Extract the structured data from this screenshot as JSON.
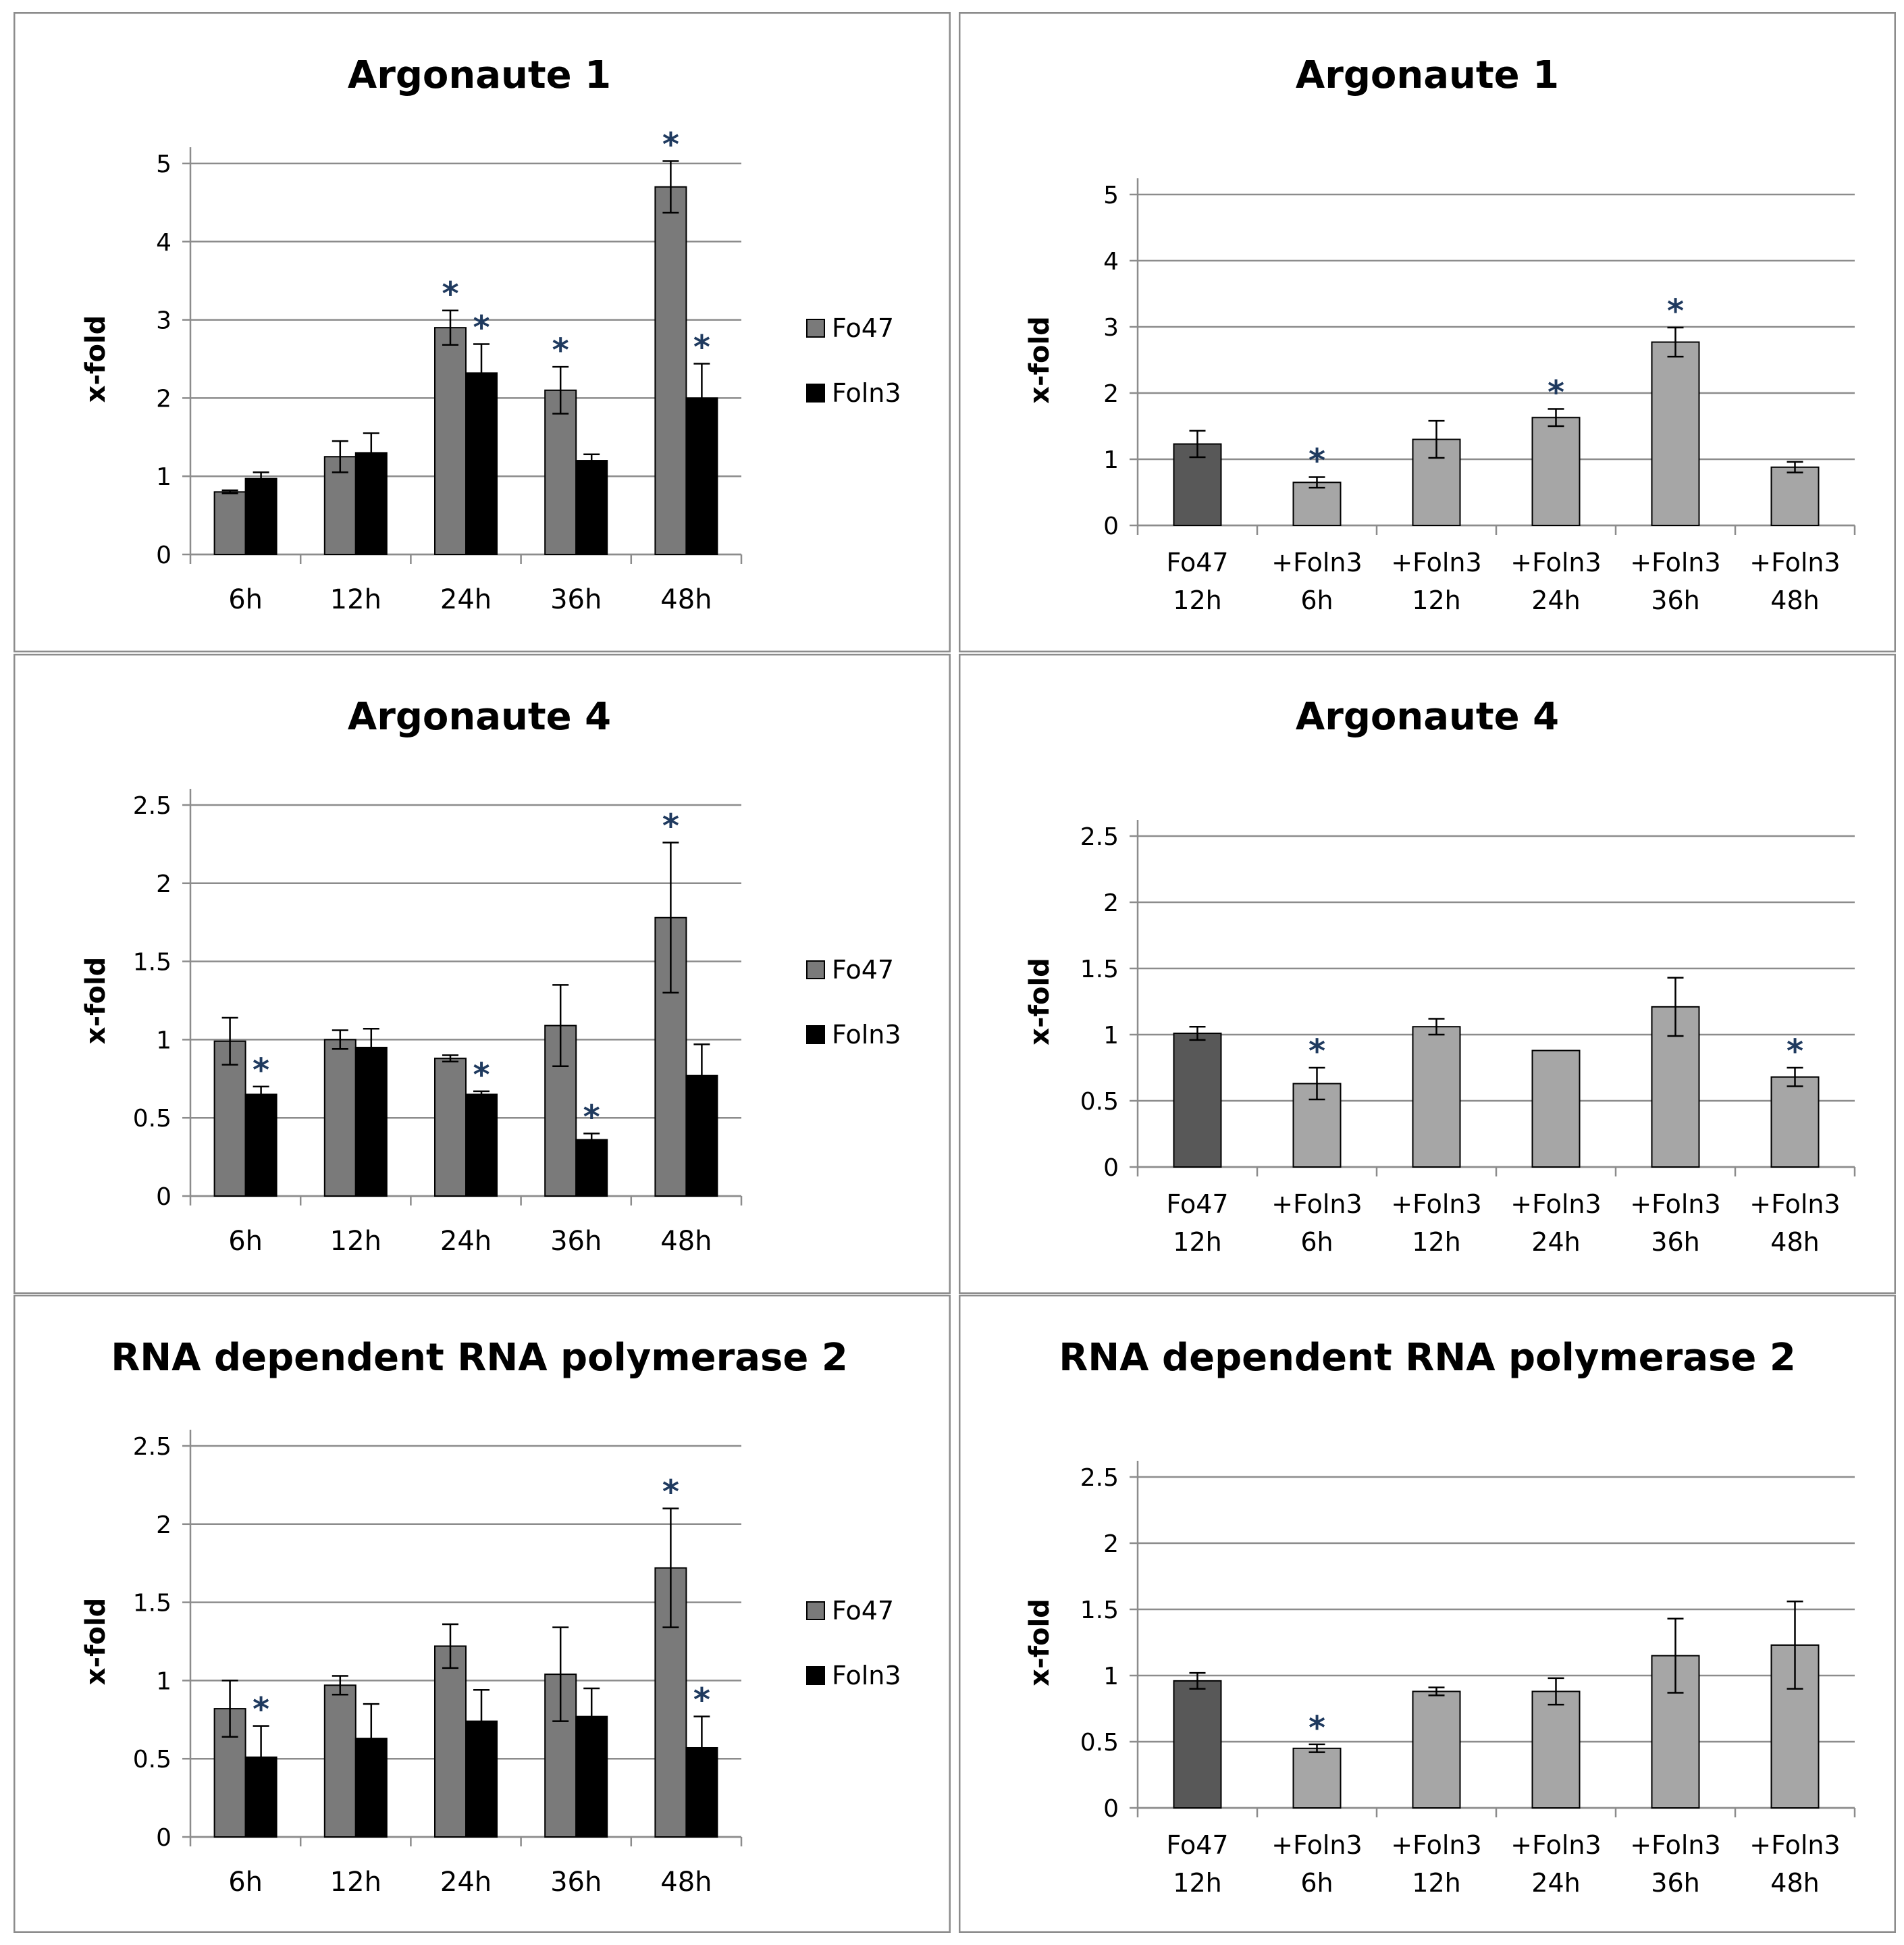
{
  "chart_data": [
    {
      "id": "ago1-time",
      "type": "bar",
      "title": "Argonaute 1",
      "xlabel": "",
      "ylabel": "x-fold",
      "ylim": [
        0,
        5
      ],
      "yticks": [
        "0",
        "1",
        "2",
        "3",
        "4",
        "5"
      ],
      "ytick_values": [
        0,
        1,
        2,
        3,
        4,
        5
      ],
      "categories": [
        "6h",
        "12h",
        "24h",
        "36h",
        "48h"
      ],
      "legend": "right",
      "series": [
        {
          "name": "Fo47",
          "color": "#7a7a7a",
          "values": [
            0.8,
            1.25,
            2.9,
            2.1,
            4.7
          ],
          "errors": [
            0.02,
            0.2,
            0.22,
            0.3,
            0.33
          ],
          "significant": [
            false,
            false,
            true,
            true,
            true
          ]
        },
        {
          "name": "Foln3",
          "color": "#000000",
          "values": [
            0.97,
            1.3,
            2.32,
            1.2,
            2.0
          ],
          "errors": [
            0.08,
            0.25,
            0.37,
            0.08,
            0.44
          ],
          "significant": [
            false,
            false,
            true,
            false,
            true
          ]
        }
      ]
    },
    {
      "id": "ago1-infection",
      "type": "bar",
      "title": "Argonaute 1",
      "xlabel": "",
      "ylabel": "x-fold",
      "ylim": [
        0,
        5
      ],
      "yticks": [
        "0",
        "1",
        "2",
        "3",
        "4",
        "5"
      ],
      "ytick_values": [
        0,
        1,
        2,
        3,
        4,
        5
      ],
      "categories": [
        [
          "Fo47",
          "12h"
        ],
        [
          "+Foln3",
          "6h"
        ],
        [
          "+Foln3",
          "12h"
        ],
        [
          "+Foln3",
          "24h"
        ],
        [
          "+Foln3",
          "36h"
        ],
        [
          "+Foln3",
          "48h"
        ]
      ],
      "bar_colors": [
        "#585858",
        "#a6a6a6",
        "#a6a6a6",
        "#a6a6a6",
        "#a6a6a6",
        "#a6a6a6"
      ],
      "values": [
        1.23,
        0.65,
        1.3,
        1.63,
        2.77,
        0.88
      ],
      "errors": [
        0.2,
        0.08,
        0.28,
        0.13,
        0.22,
        0.08
      ],
      "significant": [
        false,
        true,
        false,
        true,
        true,
        false
      ]
    },
    {
      "id": "ago4-time",
      "type": "bar",
      "title": "Argonaute 4",
      "xlabel": "",
      "ylabel": "x-fold",
      "ylim": [
        0,
        2.5
      ],
      "yticks": [
        "0",
        "0.5",
        "1",
        "1.5",
        "2",
        "2.5"
      ],
      "ytick_values": [
        0,
        0.5,
        1,
        1.5,
        2,
        2.5
      ],
      "categories": [
        "6h",
        "12h",
        "24h",
        "36h",
        "48h"
      ],
      "legend": "right",
      "series": [
        {
          "name": "Fo47",
          "color": "#7a7a7a",
          "values": [
            0.99,
            1.0,
            0.88,
            1.09,
            1.78
          ],
          "errors": [
            0.15,
            0.06,
            0.02,
            0.26,
            0.48
          ],
          "significant": [
            false,
            false,
            false,
            false,
            true
          ]
        },
        {
          "name": "Foln3",
          "color": "#000000",
          "values": [
            0.65,
            0.95,
            0.65,
            0.36,
            0.77
          ],
          "errors": [
            0.05,
            0.12,
            0.02,
            0.04,
            0.2
          ],
          "significant": [
            true,
            false,
            true,
            true,
            false
          ]
        }
      ]
    },
    {
      "id": "ago4-infection",
      "type": "bar",
      "title": "Argonaute 4",
      "xlabel": "",
      "ylabel": "x-fold",
      "ylim": [
        0,
        2.5
      ],
      "yticks": [
        "0",
        "0.5",
        "1",
        "1.5",
        "2",
        "2.5"
      ],
      "ytick_values": [
        0,
        0.5,
        1,
        1.5,
        2,
        2.5
      ],
      "categories": [
        [
          "Fo47",
          "12h"
        ],
        [
          "+Foln3",
          "6h"
        ],
        [
          "+Foln3",
          "12h"
        ],
        [
          "+Foln3",
          "24h"
        ],
        [
          "+Foln3",
          "36h"
        ],
        [
          "+Foln3",
          "48h"
        ]
      ],
      "bar_colors": [
        "#585858",
        "#a6a6a6",
        "#a6a6a6",
        "#a6a6a6",
        "#a6a6a6",
        "#a6a6a6"
      ],
      "values": [
        1.01,
        0.63,
        1.06,
        0.88,
        1.21,
        0.68
      ],
      "errors": [
        0.05,
        0.12,
        0.06,
        0,
        0.22,
        0.07
      ],
      "significant": [
        false,
        true,
        false,
        false,
        false,
        true
      ]
    },
    {
      "id": "rdr2-time",
      "type": "bar",
      "title": "RNA dependent RNA polymerase 2",
      "xlabel": "",
      "ylabel": "x-fold",
      "ylim": [
        0,
        2.5
      ],
      "yticks": [
        "0",
        "0.5",
        "1",
        "1.5",
        "2",
        "2.5"
      ],
      "ytick_values": [
        0,
        0.5,
        1,
        1.5,
        2,
        2.5
      ],
      "categories": [
        "6h",
        "12h",
        "24h",
        "36h",
        "48h"
      ],
      "legend": "right",
      "series": [
        {
          "name": "Fo47",
          "color": "#7a7a7a",
          "values": [
            0.82,
            0.97,
            1.22,
            1.04,
            1.72
          ],
          "errors": [
            0.18,
            0.06,
            0.14,
            0.3,
            0.38
          ],
          "significant": [
            false,
            false,
            false,
            false,
            true
          ]
        },
        {
          "name": "Foln3",
          "color": "#000000",
          "values": [
            0.51,
            0.63,
            0.74,
            0.77,
            0.57
          ],
          "errors": [
            0.2,
            0.22,
            0.2,
            0.18,
            0.2
          ],
          "significant": [
            true,
            false,
            false,
            false,
            true
          ]
        }
      ]
    },
    {
      "id": "rdr2-infection",
      "type": "bar",
      "title": "RNA dependent RNA polymerase 2",
      "xlabel": "",
      "ylabel": "x-fold",
      "ylim": [
        0,
        2.5
      ],
      "yticks": [
        "0",
        "0.5",
        "1",
        "1.5",
        "2",
        "2.5"
      ],
      "ytick_values": [
        0,
        0.5,
        1,
        1.5,
        2,
        2.5
      ],
      "categories": [
        [
          "Fo47",
          "12h"
        ],
        [
          "+Foln3",
          "6h"
        ],
        [
          "+Foln3",
          "12h"
        ],
        [
          "+Foln3",
          "24h"
        ],
        [
          "+Foln3",
          "36h"
        ],
        [
          "+Foln3",
          "48h"
        ]
      ],
      "bar_colors": [
        "#585858",
        "#a6a6a6",
        "#a6a6a6",
        "#a6a6a6",
        "#a6a6a6",
        "#a6a6a6"
      ],
      "values": [
        0.96,
        0.45,
        0.88,
        0.88,
        1.15,
        1.23
      ],
      "errors": [
        0.06,
        0.03,
        0.03,
        0.1,
        0.28,
        0.33
      ],
      "significant": [
        false,
        true,
        false,
        false,
        false,
        false
      ]
    }
  ],
  "significance_marker": "*"
}
